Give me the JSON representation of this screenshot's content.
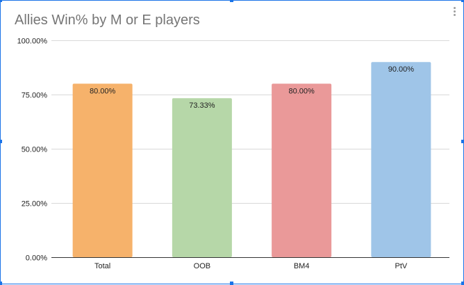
{
  "chart_data": {
    "type": "bar",
    "title": "Allies Win% by M or E players",
    "categories": [
      "Total",
      "OOB",
      "BM4",
      "PtV"
    ],
    "values": [
      80.0,
      73.33,
      80.0,
      90.0
    ],
    "data_labels": [
      "80.00%",
      "73.33%",
      "80.00%",
      "90.00%"
    ],
    "bar_colors": [
      "#f6b26b",
      "#b6d7a8",
      "#ea9999",
      "#9fc5e8"
    ],
    "ylim": [
      0,
      100
    ],
    "yticks": [
      0,
      25,
      50,
      75,
      100
    ],
    "ytick_labels": [
      "0.00%",
      "25.00%",
      "50.00%",
      "75.00%",
      "100.00%"
    ],
    "xlabel": "",
    "ylabel": "",
    "grid": true,
    "legend": "none"
  },
  "menu_icon": "more-vert-icon",
  "selection_color": "#1a73e8"
}
